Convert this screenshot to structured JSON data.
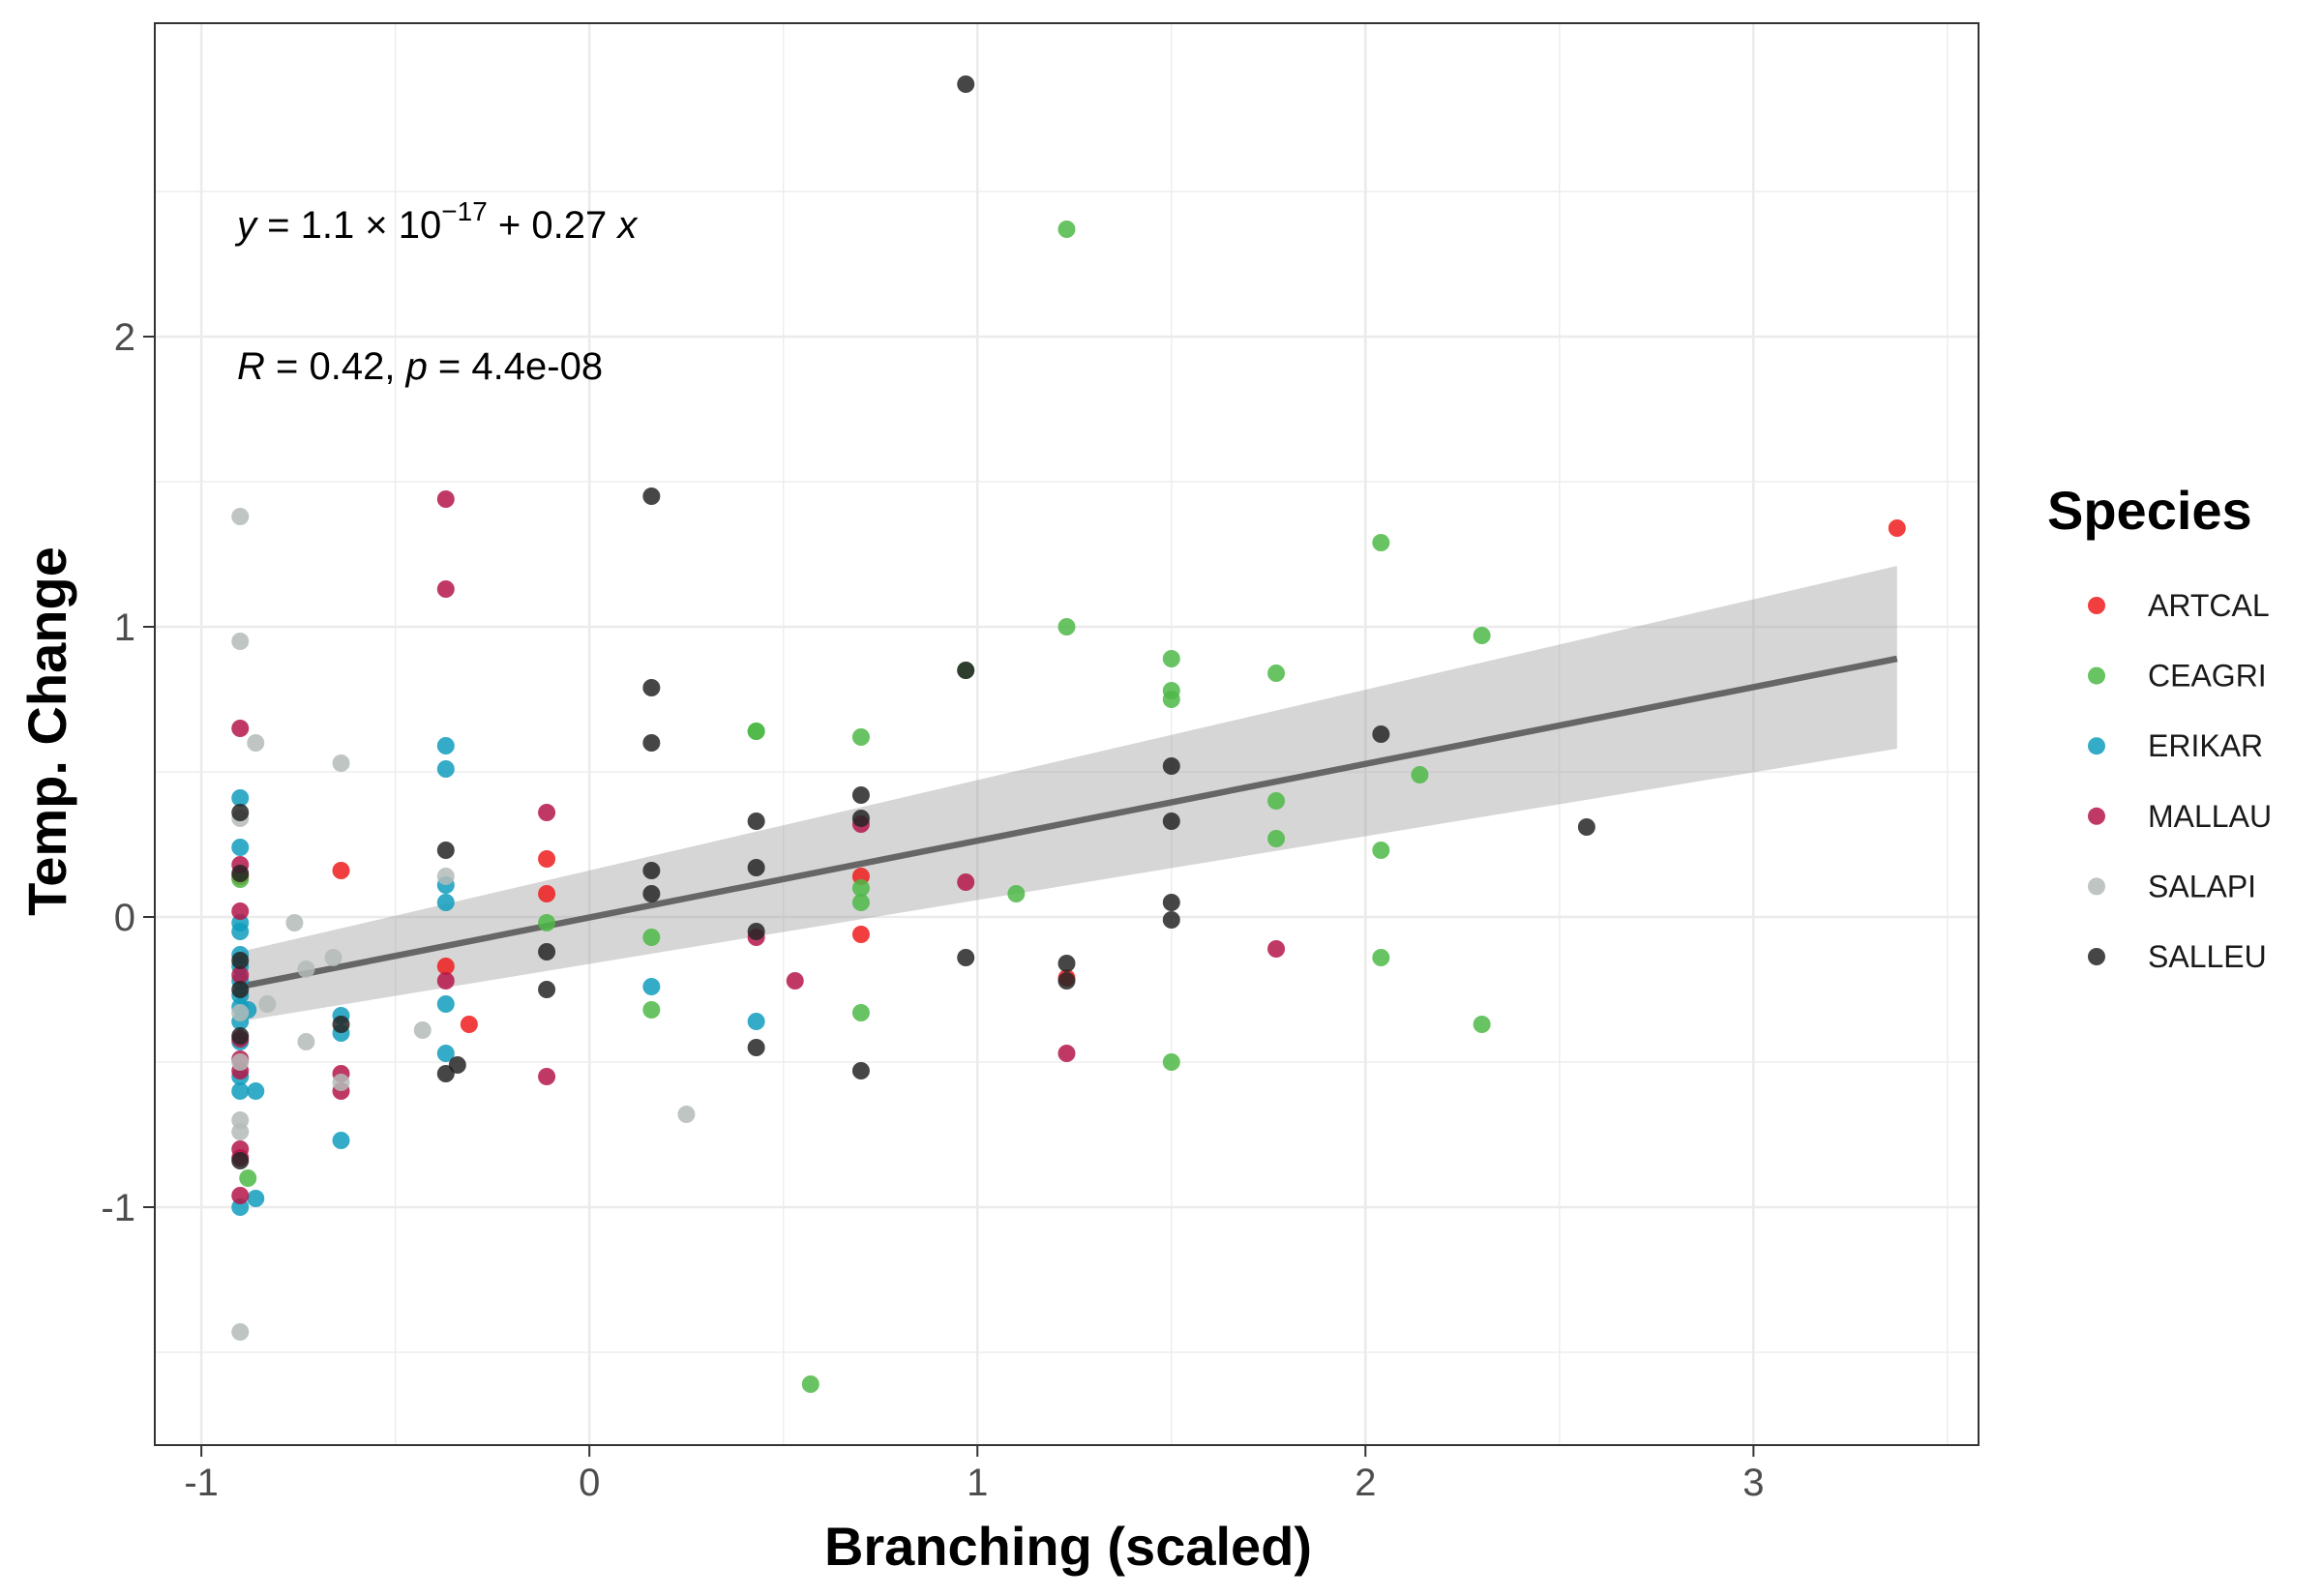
{
  "chart_data": {
    "type": "scatter",
    "xlabel": "Branching (scaled)",
    "ylabel": "Temp. Change",
    "xlim": [
      -1.12,
      3.58
    ],
    "ylim": [
      -1.82,
      3.08
    ],
    "x_ticks": [
      -1,
      0,
      1,
      2,
      3
    ],
    "x_tick_labels": [
      "-1",
      "0",
      "1",
      "2",
      "3"
    ],
    "y_ticks": [
      -1,
      0,
      1,
      2
    ],
    "y_tick_labels": [
      "-1",
      "0",
      "1",
      "2"
    ],
    "grid": true,
    "legend_position": "right",
    "legend": {
      "title": "Species",
      "entries": [
        {
          "label": "ARTCAL",
          "color": "#EE1C1C"
        },
        {
          "label": "CEAGRI",
          "color": "#4DB947"
        },
        {
          "label": "ERIKAR",
          "color": "#119CBD"
        },
        {
          "label": "MALLAU",
          "color": "#B5164A"
        },
        {
          "label": "SALAPI",
          "color": "#B4BBB8"
        },
        {
          "label": "SALLEU",
          "color": "#262626"
        }
      ]
    },
    "annotations": {
      "equation": [
        "y",
        " = 1.1 × 10",
        "−17",
        " + 0.27 ",
        "x"
      ],
      "correlation": [
        "R",
        " = 0.42, ",
        "p",
        " = 4.4e-08"
      ]
    },
    "regression": {
      "x": [
        -0.9,
        3.37
      ],
      "y": [
        -0.24,
        0.89
      ],
      "ci_lower": [
        -0.36,
        0.58
      ],
      "ci_upper": [
        -0.12,
        1.21
      ]
    },
    "series": [
      {
        "name": "ARTCAL",
        "color": "#EE1C1C",
        "points": [
          [
            -0.9,
            0.14
          ],
          [
            -0.64,
            0.16
          ],
          [
            -0.37,
            -0.17
          ],
          [
            -0.31,
            -0.37
          ],
          [
            -0.11,
            0.2
          ],
          [
            -0.11,
            0.08
          ],
          [
            0.7,
            -0.06
          ],
          [
            0.7,
            0.14
          ],
          [
            1.23,
            -0.21
          ],
          [
            3.37,
            1.34
          ]
        ]
      },
      {
        "name": "CEAGRI",
        "color": "#4DB947",
        "points": [
          [
            -0.88,
            -0.9
          ],
          [
            -0.9,
            0.13
          ],
          [
            -0.11,
            -0.02
          ],
          [
            0.16,
            -0.07
          ],
          [
            0.16,
            -0.32
          ],
          [
            0.43,
            0.64
          ],
          [
            0.43,
            0.64
          ],
          [
            0.57,
            -1.61
          ],
          [
            0.7,
            0.62
          ],
          [
            0.7,
            0.1
          ],
          [
            0.7,
            0.05
          ],
          [
            0.7,
            -0.33
          ],
          [
            0.97,
            0.85
          ],
          [
            1.1,
            0.08
          ],
          [
            1.23,
            2.37
          ],
          [
            1.23,
            1.0
          ],
          [
            1.5,
            0.89
          ],
          [
            1.5,
            0.78
          ],
          [
            1.5,
            0.75
          ],
          [
            1.5,
            -0.5
          ],
          [
            1.77,
            0.84
          ],
          [
            1.77,
            0.4
          ],
          [
            1.77,
            0.27
          ],
          [
            2.04,
            1.29
          ],
          [
            2.04,
            0.23
          ],
          [
            2.04,
            -0.14
          ],
          [
            2.14,
            0.49
          ],
          [
            2.3,
            0.97
          ],
          [
            2.3,
            -0.37
          ]
        ]
      },
      {
        "name": "ERIKAR",
        "color": "#119CBD",
        "points": [
          [
            -0.9,
            0.41
          ],
          [
            -0.9,
            0.24
          ],
          [
            -0.9,
            -0.02
          ],
          [
            -0.9,
            -0.05
          ],
          [
            -0.9,
            -0.13
          ],
          [
            -0.9,
            -0.17
          ],
          [
            -0.9,
            -0.22
          ],
          [
            -0.9,
            -0.27
          ],
          [
            -0.9,
            -0.31
          ],
          [
            -0.9,
            -0.36
          ],
          [
            -0.9,
            -0.43
          ],
          [
            -0.9,
            -0.55
          ],
          [
            -0.9,
            -0.6
          ],
          [
            -0.9,
            -1.0
          ],
          [
            -0.88,
            -0.32
          ],
          [
            -0.86,
            -0.6
          ],
          [
            -0.86,
            -0.97
          ],
          [
            -0.64,
            -0.34
          ],
          [
            -0.64,
            -0.4
          ],
          [
            -0.64,
            -0.77
          ],
          [
            -0.37,
            0.59
          ],
          [
            -0.37,
            0.51
          ],
          [
            -0.37,
            0.11
          ],
          [
            -0.37,
            0.05
          ],
          [
            -0.37,
            -0.3
          ],
          [
            -0.37,
            -0.47
          ],
          [
            0.16,
            -0.24
          ],
          [
            0.43,
            -0.36
          ]
        ]
      },
      {
        "name": "MALLAU",
        "color": "#B5164A",
        "points": [
          [
            -0.9,
            0.65
          ],
          [
            -0.9,
            0.18
          ],
          [
            -0.9,
            0.02
          ],
          [
            -0.9,
            -0.2
          ],
          [
            -0.9,
            -0.42
          ],
          [
            -0.9,
            -0.49
          ],
          [
            -0.9,
            -0.53
          ],
          [
            -0.9,
            -0.8
          ],
          [
            -0.9,
            -0.83
          ],
          [
            -0.9,
            -0.96
          ],
          [
            -0.64,
            -0.54
          ],
          [
            -0.64,
            -0.6
          ],
          [
            -0.37,
            1.44
          ],
          [
            -0.37,
            1.13
          ],
          [
            -0.37,
            -0.22
          ],
          [
            -0.11,
            0.36
          ],
          [
            -0.11,
            -0.55
          ],
          [
            0.43,
            -0.07
          ],
          [
            0.53,
            -0.22
          ],
          [
            0.7,
            0.32
          ],
          [
            0.97,
            0.12
          ],
          [
            1.23,
            -0.47
          ],
          [
            1.77,
            -0.11
          ]
        ]
      },
      {
        "name": "SALAPI",
        "color": "#B4BBB8",
        "points": [
          [
            -0.9,
            1.38
          ],
          [
            -0.9,
            0.95
          ],
          [
            -0.9,
            0.34
          ],
          [
            -0.9,
            -0.33
          ],
          [
            -0.9,
            -0.5
          ],
          [
            -0.9,
            -0.7
          ],
          [
            -0.9,
            -0.74
          ],
          [
            -0.9,
            -1.43
          ],
          [
            -0.86,
            0.6
          ],
          [
            -0.83,
            -0.3
          ],
          [
            -0.76,
            -0.02
          ],
          [
            -0.73,
            -0.18
          ],
          [
            -0.73,
            -0.43
          ],
          [
            -0.66,
            -0.14
          ],
          [
            -0.64,
            0.53
          ],
          [
            -0.64,
            -0.57
          ],
          [
            -0.43,
            -0.39
          ],
          [
            -0.37,
            0.14
          ],
          [
            0.25,
            -0.68
          ]
        ]
      },
      {
        "name": "SALLEU",
        "color": "#262626",
        "points": [
          [
            -0.9,
            0.36
          ],
          [
            -0.9,
            0.15
          ],
          [
            -0.9,
            -0.15
          ],
          [
            -0.9,
            -0.25
          ],
          [
            -0.9,
            -0.41
          ],
          [
            -0.9,
            -0.84
          ],
          [
            -0.64,
            -0.37
          ],
          [
            -0.37,
            0.23
          ],
          [
            -0.37,
            -0.54
          ],
          [
            -0.34,
            -0.51
          ],
          [
            -0.11,
            -0.12
          ],
          [
            -0.11,
            -0.25
          ],
          [
            0.16,
            1.45
          ],
          [
            0.16,
            0.79
          ],
          [
            0.16,
            0.6
          ],
          [
            0.16,
            0.16
          ],
          [
            0.16,
            0.08
          ],
          [
            0.43,
            0.33
          ],
          [
            0.43,
            0.17
          ],
          [
            0.43,
            -0.05
          ],
          [
            0.43,
            -0.45
          ],
          [
            0.7,
            0.42
          ],
          [
            0.7,
            0.34
          ],
          [
            0.7,
            -0.53
          ],
          [
            0.97,
            2.87
          ],
          [
            0.97,
            0.85
          ],
          [
            0.97,
            -0.14
          ],
          [
            1.23,
            -0.16
          ],
          [
            1.23,
            -0.22
          ],
          [
            1.5,
            0.52
          ],
          [
            1.5,
            0.33
          ],
          [
            1.5,
            0.05
          ],
          [
            1.5,
            -0.01
          ],
          [
            2.04,
            0.63
          ],
          [
            2.57,
            0.31
          ]
        ]
      }
    ]
  }
}
